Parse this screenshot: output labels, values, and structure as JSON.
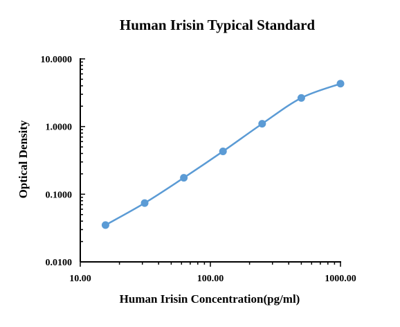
{
  "chart_data": {
    "type": "scatter",
    "title": "Human Irisin Typical Standard",
    "xlabel": "Human Irisin Concentration(pg/ml)",
    "ylabel": "Optical Density",
    "x_scale": "log",
    "y_scale": "log",
    "xlim": [
      10,
      1000
    ],
    "ylim": [
      0.01,
      10
    ],
    "x_tick_labels": [
      {
        "value": 10,
        "label": "10.00"
      },
      {
        "value": 100,
        "label": "100.00"
      },
      {
        "value": 1000,
        "label": "1000.00"
      }
    ],
    "y_tick_labels": [
      {
        "value": 0.01,
        "label": "0.0100"
      },
      {
        "value": 0.1,
        "label": "0.1000"
      },
      {
        "value": 1,
        "label": "1.0000"
      },
      {
        "value": 10,
        "label": "10.0000"
      }
    ],
    "grid": false,
    "legend": "none",
    "series": [
      {
        "color": "#5b9bd5",
        "x": [
          15.625,
          31.25,
          62.5,
          125,
          250,
          500,
          1000
        ],
        "y": [
          0.035,
          0.074,
          0.175,
          0.43,
          1.1,
          2.65,
          4.3
        ]
      }
    ]
  }
}
